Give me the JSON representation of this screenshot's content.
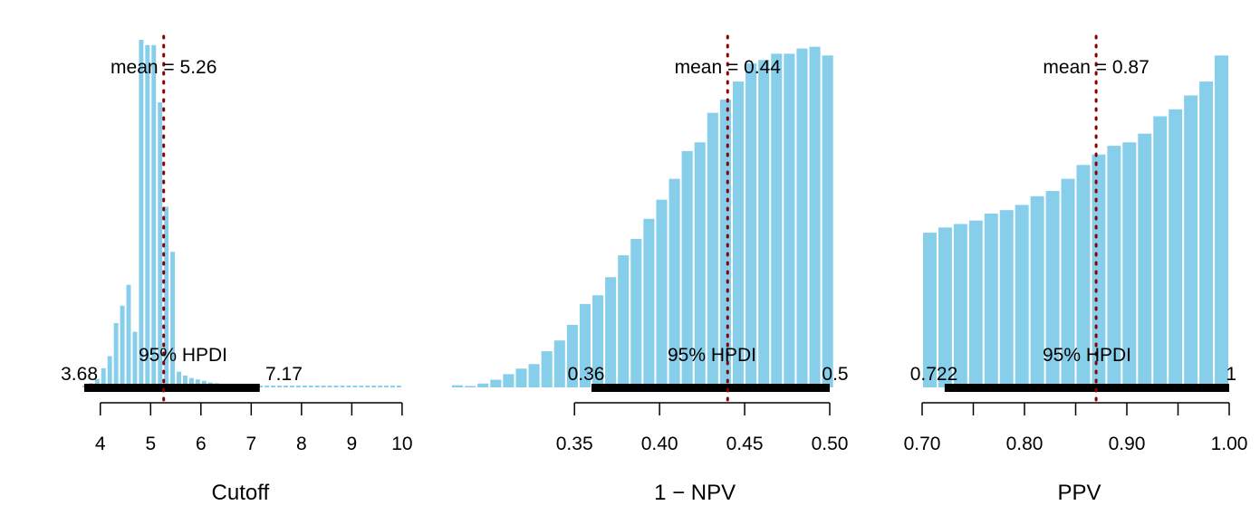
{
  "chart_data": [
    {
      "type": "bar",
      "xlabel": "Cutoff",
      "xlim": [
        3.5,
        10.2
      ],
      "ylim": [
        0,
        1
      ],
      "ticks": [
        4,
        5,
        6,
        7,
        8,
        9,
        10
      ],
      "tick_labels": [
        "4",
        "5",
        "6",
        "7",
        "8",
        "9",
        "10"
      ],
      "bin_width": 0.125,
      "bins_start": [
        3.625,
        3.75,
        3.875,
        4.0,
        4.125,
        4.25,
        4.375,
        4.5,
        4.625,
        4.75,
        4.875,
        5.0,
        5.125,
        5.25,
        5.375,
        5.5,
        5.625,
        5.75,
        5.875,
        6.0,
        6.125,
        6.25,
        6.375,
        6.5,
        6.625,
        6.75,
        6.875,
        7.0,
        7.125,
        7.25,
        7.375,
        7.5,
        7.625,
        7.75,
        7.875,
        8.0,
        8.125,
        8.25,
        8.375,
        8.5,
        8.625,
        8.75,
        8.875,
        9.0,
        9.125,
        9.25,
        9.375,
        9.5,
        9.625,
        9.75,
        9.875
      ],
      "values": [
        0.006,
        0.012,
        0.024,
        0.055,
        0.09,
        0.185,
        0.235,
        0.295,
        0.16,
        1.0,
        0.985,
        0.985,
        0.82,
        0.52,
        0.39,
        0.045,
        0.034,
        0.027,
        0.023,
        0.019,
        0.014,
        0.012,
        0.01,
        0.009,
        0.008,
        0.007,
        0.006,
        0.006,
        0.005,
        0.005,
        0.005,
        0.005,
        0.005,
        0.005,
        0.005,
        0.005,
        0.005,
        0.005,
        0.005,
        0.005,
        0.005,
        0.005,
        0.005,
        0.005,
        0.005,
        0.005,
        0.005,
        0.005,
        0.005,
        0.005,
        0.005
      ],
      "mean": 5.26,
      "mean_label": "mean = 5.26",
      "hpdi": [
        3.68,
        7.17
      ],
      "hpdi_label": "95% HPDI",
      "hpdi_low_label": "3.68",
      "hpdi_high_label": "7.17",
      "colors": {
        "bar": "#87ceeb",
        "mean_line": "#8b0000",
        "hpdi_bar": "#000000"
      }
    },
    {
      "type": "bar",
      "xlabel": "1 − NPV",
      "xlim": [
        0.2775,
        0.5
      ],
      "ylim": [
        0,
        1
      ],
      "ticks": [
        0.35,
        0.4,
        0.45,
        0.5
      ],
      "tick_labels": [
        "0.35",
        "0.40",
        "0.45",
        "0.50"
      ],
      "bin_width": 0.0075,
      "bins_start": [
        0.2775,
        0.285,
        0.2925,
        0.3,
        0.3075,
        0.315,
        0.3225,
        0.33,
        0.3375,
        0.345,
        0.3525,
        0.36,
        0.3675,
        0.375,
        0.3825,
        0.39,
        0.3975,
        0.405,
        0.4125,
        0.42,
        0.4275,
        0.435,
        0.4425,
        0.45,
        0.4575,
        0.465,
        0.4725,
        0.48,
        0.4875,
        0.495
      ],
      "values": [
        0.006,
        0.004,
        0.011,
        0.022,
        0.038,
        0.054,
        0.067,
        0.104,
        0.135,
        0.18,
        0.24,
        0.265,
        0.317,
        0.38,
        0.427,
        0.485,
        0.54,
        0.6,
        0.68,
        0.705,
        0.79,
        0.828,
        0.88,
        0.932,
        0.942,
        0.96,
        0.96,
        0.975,
        0.98,
        0.955
      ],
      "mean": 0.44,
      "mean_label": "mean = 0.44",
      "hpdi": [
        0.36,
        0.5
      ],
      "hpdi_label": "95% HPDI",
      "hpdi_low_label": "0.36",
      "hpdi_high_label": "0.5",
      "colors": {
        "bar": "#87ceeb",
        "mean_line": "#8b0000",
        "hpdi_bar": "#000000"
      }
    },
    {
      "type": "bar",
      "xlabel": "PPV",
      "xlim": [
        0.7,
        1.0
      ],
      "ylim": [
        0,
        1
      ],
      "ticks": [
        0.7,
        0.75,
        0.8,
        0.85,
        0.9,
        0.95,
        1.0
      ],
      "tick_labels": [
        "0.70",
        "",
        "0.80",
        "",
        "0.90",
        "",
        "1.00"
      ],
      "bin_width": 0.015,
      "bins_start": [
        0.7,
        0.715,
        0.73,
        0.745,
        0.76,
        0.775,
        0.79,
        0.805,
        0.82,
        0.835,
        0.85,
        0.865,
        0.88,
        0.895,
        0.91,
        0.925,
        0.94,
        0.955,
        0.97,
        0.985
      ],
      "values": [
        0.445,
        0.46,
        0.47,
        0.48,
        0.5,
        0.51,
        0.525,
        0.55,
        0.565,
        0.6,
        0.64,
        0.67,
        0.695,
        0.705,
        0.73,
        0.78,
        0.8,
        0.84,
        0.88,
        0.955
      ],
      "mean": 0.87,
      "mean_label": "mean = 0.87",
      "hpdi": [
        0.722,
        1.0
      ],
      "hpdi_label": "95% HPDI",
      "hpdi_low_label": "0.722",
      "hpdi_high_label": "1",
      "colors": {
        "bar": "#87ceeb",
        "mean_line": "#8b0000",
        "hpdi_bar": "#000000"
      }
    }
  ]
}
